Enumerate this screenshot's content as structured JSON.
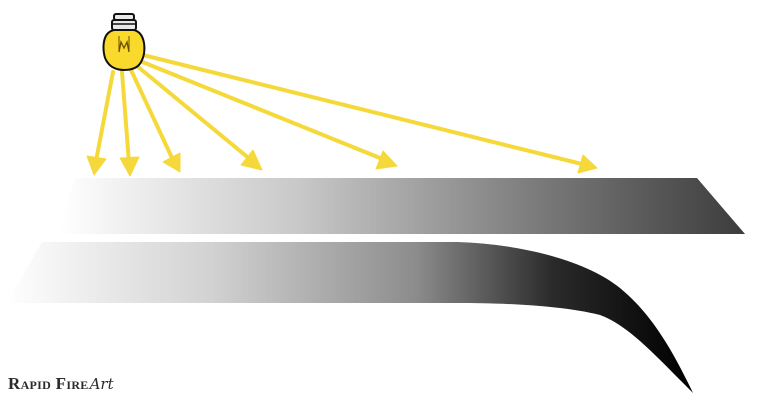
{
  "branding": {
    "logo_main": "Rapid Fire",
    "logo_script": "Art"
  },
  "illustration": {
    "light_source": "light-bulb-icon",
    "ray_count": 6,
    "colors": {
      "ray": "#f5d93a",
      "bulb_glass": "#f8d92c",
      "bulb_outline": "#111111",
      "gradient_light": "#ffffff",
      "gradient_dark": "#000000"
    }
  }
}
